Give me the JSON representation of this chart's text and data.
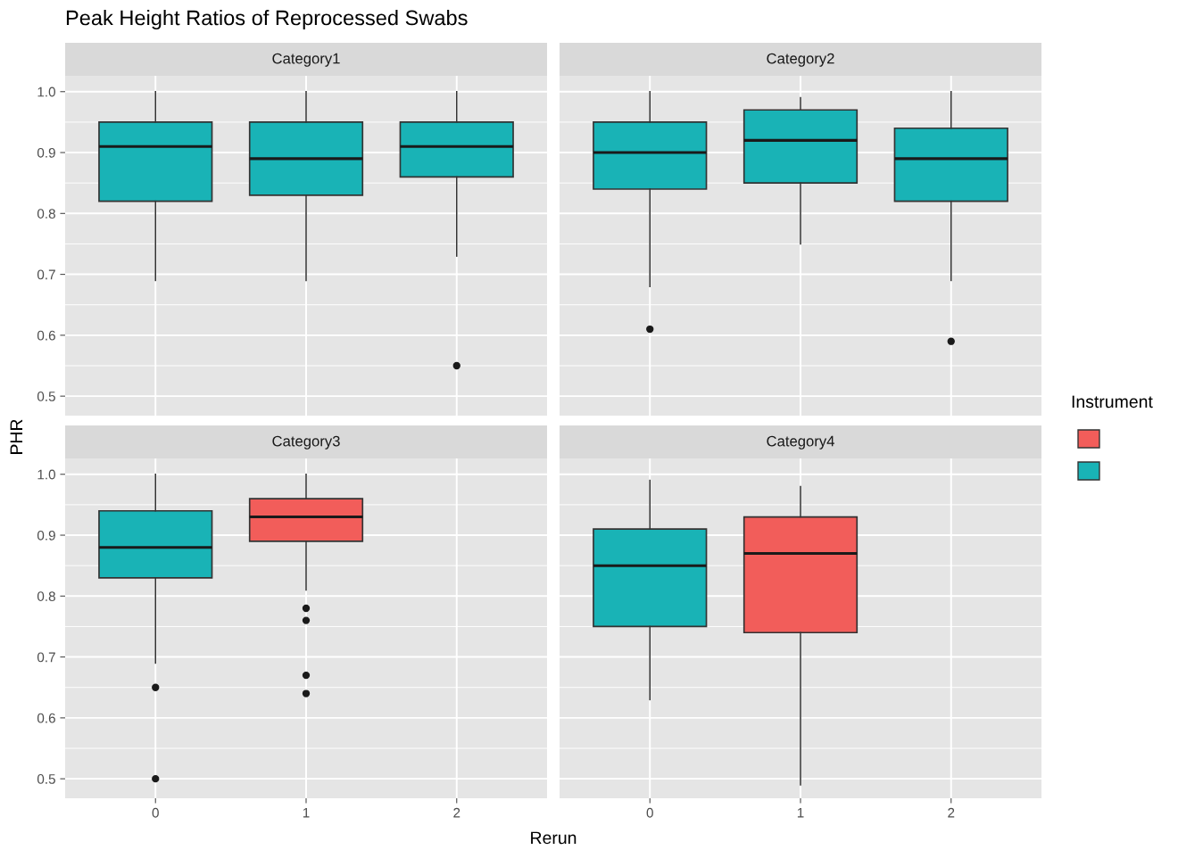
{
  "chart_data": [
    {
      "type": "box",
      "title": "Peak Height Ratios of Reprocessed Swabs",
      "subtitle": "Category1",
      "ylabel": "PHR",
      "categories": [
        "0",
        "1",
        "2"
      ],
      "ylim": [
        0.468,
        1.026
      ],
      "yticks": [
        0.5,
        0.6,
        0.7,
        0.8,
        0.9,
        {
          "value": 1.0,
          "label": "1.0"
        }
      ],
      "grid": true,
      "tick_labels": "y",
      "series": [
        {
          "color": "#19b3b6",
          "boxes": [
            {
              "low": 0.69,
              "q1": 0.82,
              "median": 0.91,
              "q3": 0.95,
              "high": 1.0
            },
            {
              "low": 0.69,
              "q1": 0.83,
              "median": 0.89,
              "q3": 0.95,
              "high": 1.0
            },
            {
              "low": 0.73,
              "q1": 0.86,
              "median": 0.91,
              "q3": 0.95,
              "high": 1.0,
              "outliers": [
                0.55
              ]
            }
          ]
        }
      ]
    },
    {
      "type": "box",
      "subtitle": "Category2",
      "categories": [
        "0",
        "1",
        "2"
      ],
      "ylim": [
        0.468,
        1.026
      ],
      "yticks": [
        0.5,
        0.6,
        0.7,
        0.8,
        0.9,
        1.0
      ],
      "grid": true,
      "tick_labels": false,
      "legend_title": "Instrument",
      "series": [
        {
          "color": "#f25d5a",
          "boxes": [
            null,
            null,
            null
          ]
        },
        {
          "color": "#19b3b6",
          "boxes": [
            {
              "low": 0.68,
              "q1": 0.84,
              "median": 0.9,
              "q3": 0.95,
              "high": 1.0,
              "outliers": [
                0.61
              ]
            },
            {
              "low": 0.75,
              "q1": 0.85,
              "median": 0.92,
              "q3": 0.97,
              "high": 0.99
            },
            {
              "low": 0.69,
              "q1": 0.82,
              "median": 0.89,
              "q3": 0.94,
              "high": 1.0,
              "outliers": [
                0.59
              ]
            }
          ]
        }
      ]
    },
    {
      "type": "box",
      "subtitle": "Category3",
      "xlabel": "Rerun",
      "categories": [
        "0",
        "1",
        "2"
      ],
      "ylim": [
        0.468,
        1.026
      ],
      "yticks": [
        0.5,
        0.6,
        0.7,
        0.8,
        0.9,
        {
          "value": 1.0,
          "label": "1.0"
        }
      ],
      "grid": true,
      "series": [
        {
          "color": "#f25d5a",
          "boxes": [
            null,
            {
              "low": 0.81,
              "q1": 0.89,
              "median": 0.93,
              "q3": 0.96,
              "high": 1.0,
              "outliers": [
                0.78,
                0.76,
                0.67,
                0.64
              ]
            },
            null
          ]
        },
        {
          "color": "#19b3b6",
          "boxes": [
            {
              "low": 0.69,
              "q1": 0.83,
              "median": 0.88,
              "q3": 0.94,
              "high": 1.0,
              "outliers": [
                0.65,
                0.5
              ]
            },
            null,
            null
          ]
        }
      ]
    },
    {
      "type": "box",
      "subtitle": "Category4",
      "categories": [
        "0",
        "1",
        "2"
      ],
      "ylim": [
        0.468,
        1.026
      ],
      "yticks": [
        0.5,
        0.6,
        0.7,
        0.8,
        0.9,
        1.0
      ],
      "grid": true,
      "tick_labels": "x",
      "series": [
        {
          "color": "#f25d5a",
          "boxes": [
            null,
            {
              "low": 0.49,
              "q1": 0.74,
              "median": 0.87,
              "q3": 0.93,
              "high": 0.98
            },
            null
          ]
        },
        {
          "color": "#19b3b6",
          "boxes": [
            {
              "low": 0.63,
              "q1": 0.75,
              "median": 0.85,
              "q3": 0.91,
              "high": 0.99
            },
            null,
            null
          ]
        }
      ]
    }
  ]
}
